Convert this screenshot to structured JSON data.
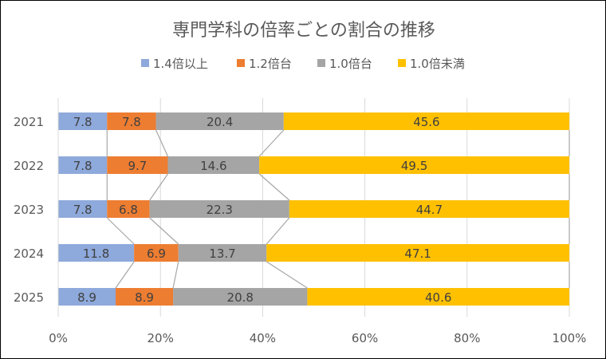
{
  "chart_data": {
    "type": "bar",
    "orientation": "horizontal",
    "stacking": "percent",
    "title": "専門学科の倍率ごとの割合の推移",
    "categories": [
      "2021",
      "2022",
      "2023",
      "2024",
      "2025"
    ],
    "series": [
      {
        "name": "1.4倍以上",
        "color": "#8EA9DB",
        "values": [
          7.8,
          7.8,
          7.8,
          11.8,
          8.9
        ]
      },
      {
        "name": "1.2倍台",
        "color": "#ED7D31",
        "values": [
          7.8,
          9.7,
          6.8,
          6.9,
          8.9
        ]
      },
      {
        "name": "1.0倍台",
        "color": "#A5A5A5",
        "values": [
          20.4,
          14.6,
          22.3,
          13.7,
          20.8
        ]
      },
      {
        "name": "1.0倍未満",
        "color": "#FFC000",
        "values": [
          45.6,
          49.5,
          44.7,
          47.1,
          40.6
        ]
      }
    ],
    "x_ticks": [
      "0%",
      "20%",
      "40%",
      "60%",
      "80%",
      "100%"
    ],
    "xlim": [
      0,
      100
    ],
    "grid": true,
    "series_lines": true,
    "data_labels": true,
    "legend": "top"
  }
}
